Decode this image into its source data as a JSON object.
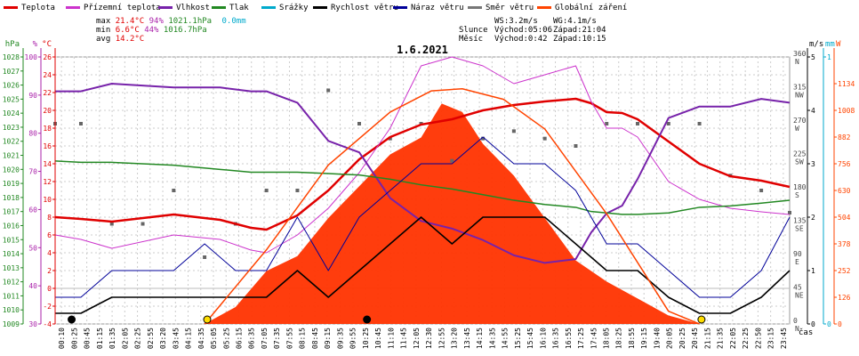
{
  "legend": [
    {
      "label": "Teplota",
      "color": "#e00000"
    },
    {
      "label": "Přízemní teplota",
      "color": "#cc33cc"
    },
    {
      "label": "Vlhkost",
      "color": "#7722aa"
    },
    {
      "label": "Tlak",
      "color": "#228822"
    },
    {
      "label": "Srážky",
      "color": "#00aacc"
    },
    {
      "label": "Rychlost větru",
      "color": "#000000"
    },
    {
      "label": "Náraz větru",
      "color": "#000099"
    },
    {
      "label": "Směr větru",
      "color": "#777777"
    },
    {
      "label": "Globální záření",
      "color": "#ff4400"
    }
  ],
  "stats": {
    "max": {
      "label": "max",
      "temp": "21.4°C",
      "hum": "94%",
      "press": "1021.1hPa",
      "rain": "0.0mm"
    },
    "min": {
      "label": "min",
      "temp": "6.6°C",
      "hum": "44%",
      "press": "1016.7hPa"
    },
    "avg": {
      "label": "avg",
      "temp": "14.2°C"
    },
    "ws": "WS:3.2m/s",
    "wg": "WG:4.1m/s",
    "sun_label": "Slunce",
    "sunrise": "Východ:05:06",
    "sunset": "Západ:21:04",
    "moon_label": "Měsíc",
    "moonrise": "Východ:0:42",
    "moonset": "Západ:10:15"
  },
  "axis_units": {
    "hpa": "hPa",
    "pct": "%",
    "degc": "°C",
    "ms": "m/s",
    "mm": "mm",
    "w": "W",
    "time": "čas"
  },
  "colors": {
    "hpa": "#228822",
    "pct": "#aa22aa",
    "degc": "#e00000",
    "ms": "#000000",
    "mm": "#00aacc",
    "w": "#ff4400",
    "dir": "#444444"
  },
  "chart_data": {
    "type": "line",
    "title": "1.6.2021",
    "xlabel": "čas",
    "x_range_minutes": [
      10,
      1435
    ],
    "axes": {
      "pressure_hpa": {
        "min": 1009,
        "max": 1028,
        "ticks": [
          1009,
          1010,
          1011,
          1012,
          1013,
          1014,
          1015,
          1016,
          1017,
          1018,
          1019,
          1020,
          1021,
          1022,
          1023,
          1024,
          1025,
          1026,
          1027,
          1028
        ]
      },
      "humidity_pct": {
        "min": 30,
        "max": 100,
        "ticks": [
          30,
          40,
          50,
          60,
          70,
          80,
          90,
          100
        ]
      },
      "temperature_c": {
        "min": -4,
        "max": 26,
        "ticks": [
          -4,
          -2,
          0,
          2,
          4,
          6,
          8,
          10,
          12,
          14,
          16,
          18,
          20,
          22,
          24,
          26
        ]
      },
      "wind_ms": {
        "min": 0,
        "max": 5,
        "ticks": [
          0,
          1,
          2,
          3,
          4,
          5
        ]
      },
      "rain_mm": {
        "min": 0,
        "max": 1,
        "ticks": [
          0,
          1
        ]
      },
      "radiation_w": {
        "min": 0,
        "max": 1260,
        "ticks": [
          0,
          126,
          252,
          378,
          504,
          630,
          756,
          882,
          1008,
          1134
        ]
      },
      "wind_dir_deg": {
        "min": 0,
        "max": 360,
        "ticks": [
          0,
          45,
          90,
          135,
          180,
          225,
          270,
          315,
          360
        ],
        "labels": [
          "N",
          "NE",
          "E",
          "SE",
          "S",
          "SW",
          "W",
          "NW",
          "N"
        ]
      }
    },
    "x_tick_labels": [
      "00:10",
      "00:25",
      "00:45",
      "01:15",
      "01:35",
      "02:05",
      "02:25",
      "02:55",
      "03:20",
      "03:45",
      "04:15",
      "04:35",
      "05:05",
      "05:25",
      "06:15",
      "06:35",
      "07:05",
      "07:35",
      "07:55",
      "08:15",
      "08:45",
      "09:15",
      "09:35",
      "09:55",
      "10:25",
      "10:45",
      "11:10",
      "11:45",
      "12:05",
      "12:30",
      "12:55",
      "13:20",
      "13:45",
      "14:15",
      "14:35",
      "14:55",
      "15:25",
      "15:45",
      "16:10",
      "16:35",
      "16:55",
      "17:25",
      "17:45",
      "18:05",
      "18:25",
      "18:55",
      "19:15",
      "19:40",
      "20:05",
      "20:25",
      "20:45",
      "21:15",
      "21:35",
      "22:05",
      "22:25",
      "22:50",
      "23:15",
      "23:45"
    ],
    "series": [
      {
        "name": "Teplota",
        "axis": "temperature_c",
        "color": "#e00000",
        "width": 2.5,
        "x": [
          10,
          60,
          120,
          240,
          330,
          390,
          420,
          480,
          540,
          600,
          660,
          720,
          780,
          840,
          900,
          960,
          1020,
          1050,
          1080,
          1110,
          1140,
          1200,
          1260,
          1320,
          1380,
          1435
        ],
        "y": [
          8,
          7.8,
          7.5,
          8.3,
          7.7,
          6.8,
          6.6,
          8.2,
          11,
          14.5,
          17,
          18.4,
          19,
          20,
          20.6,
          21,
          21.3,
          20.8,
          19.8,
          19.7,
          19,
          16.5,
          14,
          12.6,
          12.1,
          11.4
        ]
      },
      {
        "name": "Přízemní teplota",
        "axis": "temperature_c",
        "color": "#cc33cc",
        "width": 1,
        "x": [
          10,
          60,
          120,
          240,
          330,
          390,
          420,
          480,
          540,
          600,
          660,
          720,
          780,
          840,
          900,
          960,
          1020,
          1050,
          1080,
          1110,
          1140,
          1200,
          1260,
          1320,
          1380,
          1435
        ],
        "y": [
          6,
          5.5,
          4.5,
          6,
          5.5,
          4.3,
          4.0,
          6,
          9,
          13,
          18,
          25,
          26,
          25,
          23,
          24,
          25,
          21,
          18,
          18,
          17,
          12,
          10,
          9,
          8.6,
          8.3
        ]
      },
      {
        "name": "Vlhkost",
        "axis": "humidity_pct",
        "color": "#7722aa",
        "width": 2,
        "x": [
          10,
          60,
          120,
          240,
          330,
          390,
          420,
          480,
          540,
          600,
          660,
          720,
          780,
          840,
          900,
          960,
          1020,
          1050,
          1080,
          1110,
          1140,
          1200,
          1260,
          1320,
          1380,
          1435
        ],
        "y": [
          91,
          91,
          93,
          92,
          92,
          91,
          91,
          88,
          78,
          75,
          63,
          57,
          55,
          52,
          48,
          46,
          47,
          54,
          59,
          61,
          68,
          84,
          87,
          87,
          89,
          88
        ]
      },
      {
        "name": "Tlak",
        "axis": "pressure_hpa",
        "color": "#228822",
        "width": 1.5,
        "x": [
          10,
          60,
          120,
          240,
          330,
          390,
          420,
          480,
          540,
          600,
          660,
          720,
          780,
          840,
          900,
          960,
          1020,
          1050,
          1080,
          1110,
          1140,
          1200,
          1260,
          1320,
          1380,
          1435
        ],
        "y": [
          1020.6,
          1020.5,
          1020.5,
          1020.3,
          1020.0,
          1019.8,
          1019.8,
          1019.8,
          1019.7,
          1019.6,
          1019.3,
          1018.9,
          1018.6,
          1018.2,
          1017.8,
          1017.5,
          1017.3,
          1017.0,
          1016.9,
          1016.8,
          1016.8,
          1016.9,
          1017.3,
          1017.4,
          1017.6,
          1017.8
        ]
      },
      {
        "name": "Rychlost větru",
        "axis": "wind_ms",
        "color": "#000000",
        "width": 1.6,
        "x": [
          10,
          60,
          120,
          180,
          240,
          300,
          360,
          420,
          480,
          540,
          600,
          660,
          720,
          780,
          840,
          900,
          960,
          1020,
          1080,
          1140,
          1200,
          1260,
          1320,
          1380,
          1435
        ],
        "y": [
          0.2,
          0.2,
          0.5,
          0.5,
          0.5,
          0.5,
          0.5,
          0.5,
          1,
          0.5,
          1,
          1.5,
          2,
          1.5,
          2,
          2,
          2,
          1.5,
          1,
          1,
          0.5,
          0.2,
          0.2,
          0.5,
          1
        ]
      },
      {
        "name": "Náraz větru",
        "axis": "wind_ms",
        "color": "#000099",
        "width": 1,
        "x": [
          10,
          60,
          120,
          180,
          240,
          300,
          360,
          420,
          480,
          540,
          600,
          660,
          720,
          780,
          840,
          900,
          960,
          1020,
          1080,
          1140,
          1200,
          1260,
          1320,
          1380,
          1435
        ],
        "y": [
          0.5,
          0.5,
          1,
          1,
          1,
          1.5,
          1,
          1,
          2,
          1,
          2,
          2.5,
          3,
          3,
          3.5,
          3,
          3,
          2.5,
          1.5,
          1.5,
          1,
          0.5,
          0.5,
          1,
          2
        ]
      },
      {
        "name": "Globální záření (teoretické)",
        "axis": "radiation_w",
        "color": "#ff4400",
        "width": 1.5,
        "x": [
          300,
          420,
          540,
          660,
          740,
          800,
          880,
          960,
          1080,
          1200,
          1260
        ],
        "y": [
          0,
          350,
          750,
          1000,
          1100,
          1110,
          1060,
          920,
          520,
          60,
          0
        ]
      }
    ],
    "radiation_area": {
      "axis": "radiation_w",
      "color": "#ff3300",
      "x": [
        300,
        360,
        420,
        480,
        540,
        600,
        660,
        720,
        760,
        800,
        840,
        900,
        960,
        1020,
        1080,
        1140,
        1200,
        1260
      ],
      "y": [
        0,
        80,
        250,
        320,
        500,
        650,
        800,
        880,
        1040,
        1000,
        850,
        700,
        500,
        300,
        200,
        120,
        40,
        0
      ]
    },
    "wind_direction": {
      "axis": "wind_dir_deg",
      "color": "#666666",
      "x": [
        10,
        60,
        120,
        180,
        240,
        300,
        360,
        420,
        480,
        540,
        600,
        660,
        720,
        780,
        840,
        900,
        960,
        1020,
        1080,
        1140,
        1200,
        1260,
        1320,
        1380,
        1435
      ],
      "y": [
        270,
        270,
        135,
        135,
        180,
        90,
        135,
        180,
        180,
        315,
        270,
        250,
        270,
        220,
        250,
        260,
        250,
        240,
        270,
        270,
        270,
        270,
        200,
        180,
        150
      ]
    },
    "markers": [
      {
        "name": "Východ slunce",
        "x": 305,
        "color": "#ffdd00"
      },
      {
        "name": "Západ slunce",
        "x": 1264,
        "color": "#ffdd00"
      },
      {
        "name": "Východ měsíce",
        "x": 42,
        "color": "#000000"
      },
      {
        "name": "Západ měsíce",
        "x": 615,
        "color": "#000000"
      }
    ]
  }
}
